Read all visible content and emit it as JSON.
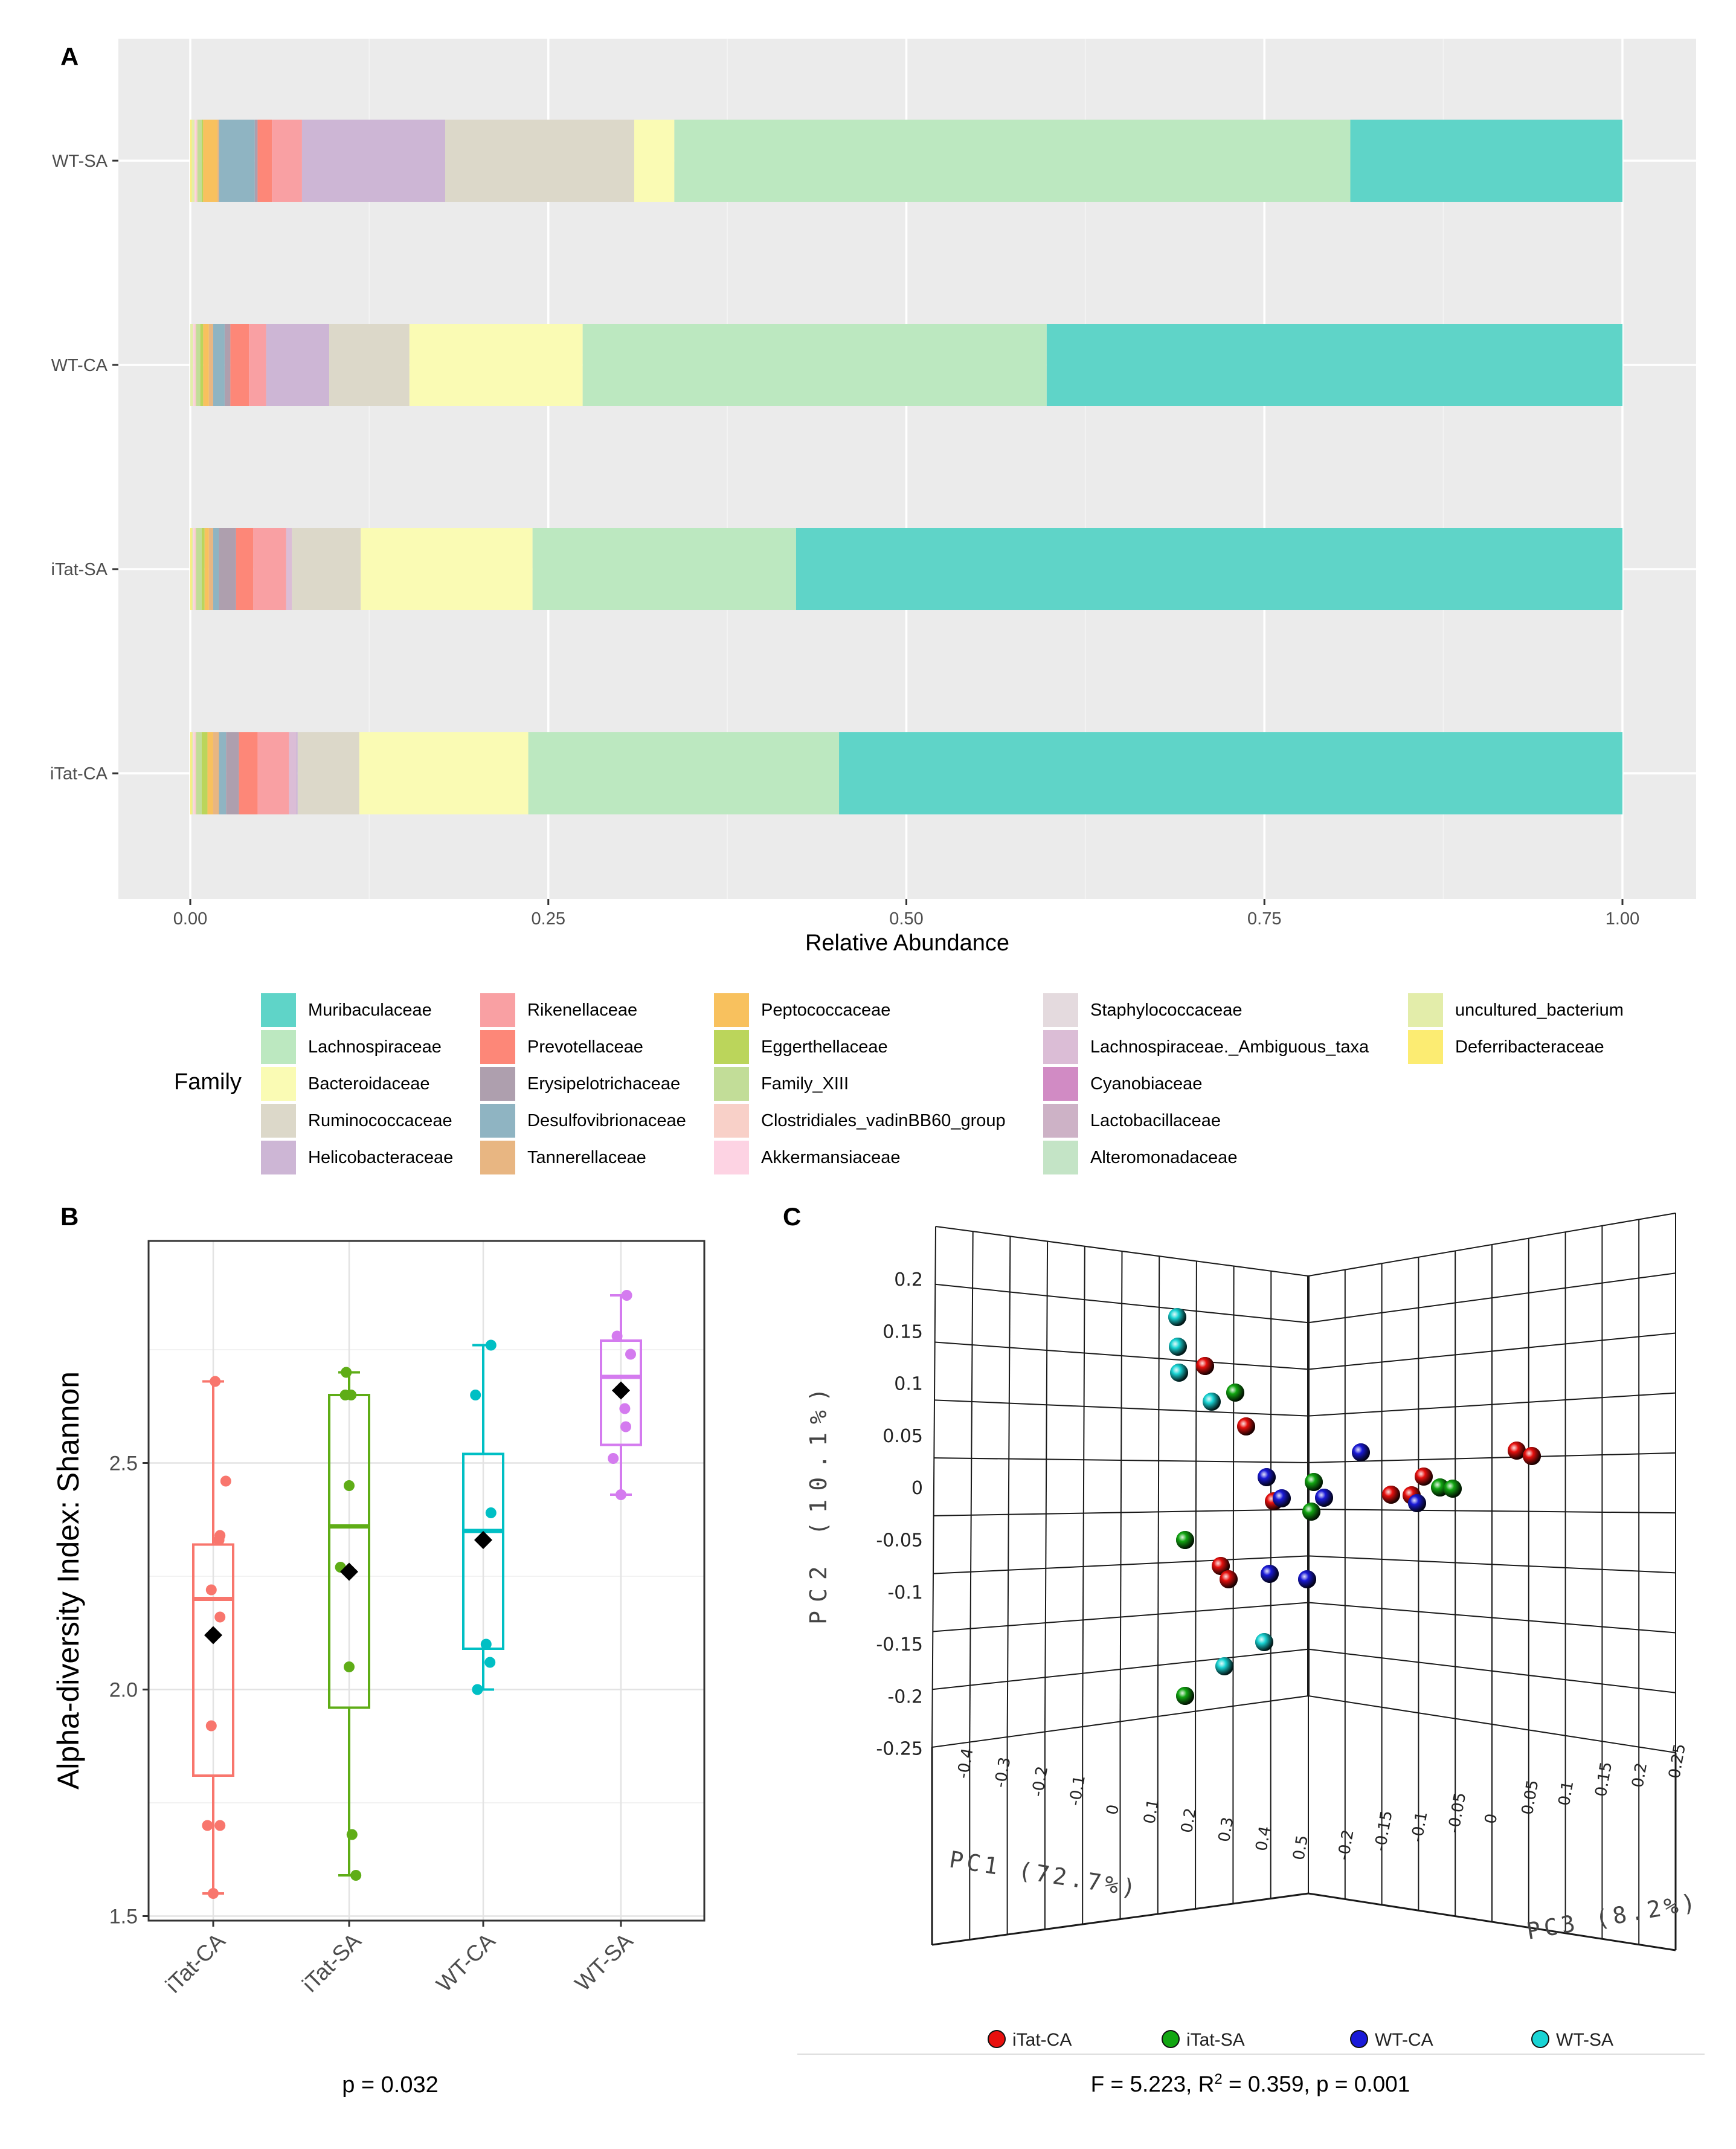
{
  "panels": {
    "a": {
      "letter": "A"
    },
    "b": {
      "letter": "B"
    },
    "c": {
      "letter": "C"
    }
  },
  "legend": {
    "title": "Family",
    "items": [
      {
        "label": "Muribaculaceae",
        "color": "#5fd4c8"
      },
      {
        "label": "Lachnospiraceae",
        "color": "#bce8c0"
      },
      {
        "label": "Bacteroidaceae",
        "color": "#fafbb4"
      },
      {
        "label": "Ruminococcaceae",
        "color": "#dcd8c9"
      },
      {
        "label": "Helicobacteraceae",
        "color": "#cdb6d5"
      },
      {
        "label": "Rikenellaceae",
        "color": "#f9a0a3"
      },
      {
        "label": "Prevotellaceae",
        "color": "#fd8778"
      },
      {
        "label": "Erysipelotrichaceae",
        "color": "#ae9fae"
      },
      {
        "label": "Desulfovibrionaceae",
        "color": "#8fb4c2"
      },
      {
        "label": "Tannerellaceae",
        "color": "#e8b682"
      },
      {
        "label": "Peptococcaceae",
        "color": "#f8c15e"
      },
      {
        "label": "Eggerthellaceae",
        "color": "#bbd55b"
      },
      {
        "label": "Family_XIII",
        "color": "#c2dd98"
      },
      {
        "label": "Clostridiales_vadinBB60_group",
        "color": "#f8d0c8"
      },
      {
        "label": "Akkermansiaceae",
        "color": "#fdd3e3"
      },
      {
        "label": "Staphylococcaceae",
        "color": "#e4dade"
      },
      {
        "label": "Lachnospiraceae._Ambiguous_taxa",
        "color": "#dbbdd6"
      },
      {
        "label": "Cyanobiaceae",
        "color": "#d18bc4"
      },
      {
        "label": "Lactobacillaceae",
        "color": "#cdb2c6"
      },
      {
        "label": "Alteromonadaceae",
        "color": "#c4e4c6"
      },
      {
        "label": "uncultured_bacterium",
        "color": "#e3edaa"
      },
      {
        "label": "Deferribacteraceae",
        "color": "#fcec72"
      }
    ]
  },
  "chart_data": [
    {
      "panel": "A",
      "type": "bar",
      "orientation": "horizontal",
      "stacked": true,
      "xlabel": "Relative Abundance",
      "ylabel": "",
      "xlim": [
        0,
        1
      ],
      "xticks": [
        "0.00",
        "0.25",
        "0.50",
        "0.75",
        "1.00"
      ],
      "categories": [
        "WT-SA",
        "WT-CA",
        "iTat-SA",
        "iTat-CA"
      ],
      "stack_order": [
        "Deferribacteraceae",
        "uncultured_bacterium",
        "Akkermansiaceae",
        "Clostridiales_vadinBB60_group",
        "Family_XIII",
        "Eggerthellaceae",
        "Peptococcaceae",
        "Tannerellaceae",
        "Desulfovibrionaceae",
        "Erysipelotrichaceae",
        "Prevotellaceae",
        "Rikenellaceae",
        "Lachnospiraceae._Ambiguous_taxa",
        "Helicobacteraceae",
        "Ruminococcaceae",
        "Bacteroidaceae",
        "Lachnospiraceae",
        "Muribaculaceae"
      ],
      "series": [
        {
          "name": "Deferribacteraceae",
          "values": [
            0.001,
            0.0,
            0.001,
            0.001
          ]
        },
        {
          "name": "uncultured_bacterium",
          "values": [
            0.002,
            0.002,
            0.001,
            0.001
          ]
        },
        {
          "name": "Akkermansiaceae",
          "values": [
            0.001,
            0.001,
            0.001,
            0.001
          ]
        },
        {
          "name": "Clostridiales_vadinBB60_group",
          "values": [
            0.001,
            0.001,
            0.001,
            0.001
          ]
        },
        {
          "name": "Family_XIII",
          "values": [
            0.003,
            0.003,
            0.004,
            0.004
          ]
        },
        {
          "name": "Eggerthellaceae",
          "values": [
            0.001,
            0.002,
            0.002,
            0.004
          ]
        },
        {
          "name": "Peptococcaceae",
          "values": [
            0.01,
            0.004,
            0.003,
            0.004
          ]
        },
        {
          "name": "Tannerellaceae",
          "values": [
            0.001,
            0.003,
            0.003,
            0.004
          ]
        },
        {
          "name": "Desulfovibrionaceae",
          "values": [
            0.025,
            0.008,
            0.004,
            0.005
          ]
        },
        {
          "name": "Erysipelotrichaceae",
          "values": [
            0.002,
            0.004,
            0.012,
            0.009
          ]
        },
        {
          "name": "Prevotellaceae",
          "values": [
            0.01,
            0.013,
            0.012,
            0.013
          ]
        },
        {
          "name": "Rikenellaceae",
          "values": [
            0.021,
            0.012,
            0.023,
            0.022
          ]
        },
        {
          "name": "Lachnospiraceae._Ambiguous_taxa",
          "values": [
            0.0,
            0.0,
            0.004,
            0.005
          ]
        },
        {
          "name": "Helicobacteraceae",
          "values": [
            0.1,
            0.044,
            0.0,
            0.001
          ]
        },
        {
          "name": "Ruminococcaceae",
          "values": [
            0.132,
            0.056,
            0.048,
            0.043
          ]
        },
        {
          "name": "Bacteroidaceae",
          "values": [
            0.028,
            0.121,
            0.12,
            0.118
          ]
        },
        {
          "name": "Lachnospiraceae",
          "values": [
            0.472,
            0.324,
            0.184,
            0.217
          ]
        },
        {
          "name": "Muribaculaceae",
          "values": [
            0.19,
            0.402,
            0.577,
            0.547
          ]
        }
      ]
    },
    {
      "panel": "B",
      "type": "box",
      "ylabel": "Alpha-diversity Index: Shannon",
      "xlabel": "",
      "ylim": [
        1.49,
        2.99
      ],
      "yticks": [
        "1.5",
        "2.0",
        "2.5"
      ],
      "categories": [
        "iTat-CA",
        "iTat-SA",
        "WT-CA",
        "WT-SA"
      ],
      "colors": [
        "#f8766d",
        "#5fad17",
        "#00bfc4",
        "#d47bef"
      ],
      "boxes": [
        {
          "min": 1.55,
          "q1": 1.81,
          "median": 2.2,
          "q3": 2.32,
          "max": 2.68,
          "mean": 2.12
        },
        {
          "min": 1.59,
          "q1": 1.96,
          "median": 2.36,
          "q3": 2.65,
          "max": 2.7,
          "mean": 2.26
        },
        {
          "min": 2.0,
          "q1": 2.09,
          "median": 2.35,
          "q3": 2.52,
          "max": 2.76,
          "mean": 2.33
        },
        {
          "min": 2.43,
          "q1": 2.54,
          "median": 2.69,
          "q3": 2.77,
          "max": 2.87,
          "mean": 2.66
        }
      ],
      "points": [
        [
          [
            0.02,
            2.68
          ],
          [
            0.13,
            2.46
          ],
          [
            0.07,
            2.34
          ],
          [
            0.06,
            2.33
          ],
          [
            -0.02,
            2.22
          ],
          [
            0.07,
            2.16
          ],
          [
            -0.02,
            1.92
          ],
          [
            -0.06,
            1.7
          ],
          [
            0.07,
            1.7
          ],
          [
            0.0,
            1.55
          ]
        ],
        [
          [
            -0.03,
            2.7
          ],
          [
            -0.04,
            2.65
          ],
          [
            0.02,
            2.65
          ],
          [
            0.0,
            2.45
          ],
          [
            -0.09,
            2.27
          ],
          [
            0.0,
            2.05
          ],
          [
            0.03,
            1.68
          ],
          [
            0.07,
            1.59
          ]
        ],
        [
          [
            0.08,
            2.76
          ],
          [
            -0.08,
            2.65
          ],
          [
            0.08,
            2.39
          ],
          [
            0.03,
            2.1
          ],
          [
            0.07,
            2.06
          ],
          [
            -0.06,
            2.0
          ]
        ],
        [
          [
            0.06,
            2.87
          ],
          [
            -0.04,
            2.78
          ],
          [
            0.1,
            2.74
          ],
          [
            0.04,
            2.62
          ],
          [
            0.05,
            2.58
          ],
          [
            -0.08,
            2.51
          ],
          [
            0.0,
            2.43
          ]
        ]
      ],
      "annotation": "p = 0.032"
    },
    {
      "panel": "C",
      "type": "scatter3d",
      "xlabel": "PC1 (72.7%)",
      "ylabel": "PC2 (10.1%)",
      "zlabel": "PC3 (8.2%)",
      "yticks": [
        "0.2",
        "0.15",
        "0.1",
        "0.05",
        "0",
        "-0.05",
        "-0.1",
        "-0.15",
        "-0.2",
        "-0.25"
      ],
      "pc1_ticks": [
        "-0.4",
        "-0.3",
        "-0.2",
        "-0.1",
        "0",
        "0.1",
        "0.2",
        "0.3",
        "0.4",
        "0.5"
      ],
      "pc3_ticks": [
        "-0.2",
        "-0.15",
        "-0.1",
        "-0.05",
        "0",
        "0.05",
        "0.1",
        "0.15",
        "0.2",
        "0.25"
      ],
      "legend": [
        {
          "name": "iTat-CA",
          "color": "#e8100e"
        },
        {
          "name": "iTat-SA",
          "color": "#12a612"
        },
        {
          "name": "WT-CA",
          "color": "#1a1ad8"
        },
        {
          "name": "WT-SA",
          "color": "#19d4d4"
        }
      ],
      "annotation_prefix": "F = 5.223, R",
      "annotation_sup": "2",
      "annotation_suffix": " = 0.359, p = 0.001"
    }
  ]
}
